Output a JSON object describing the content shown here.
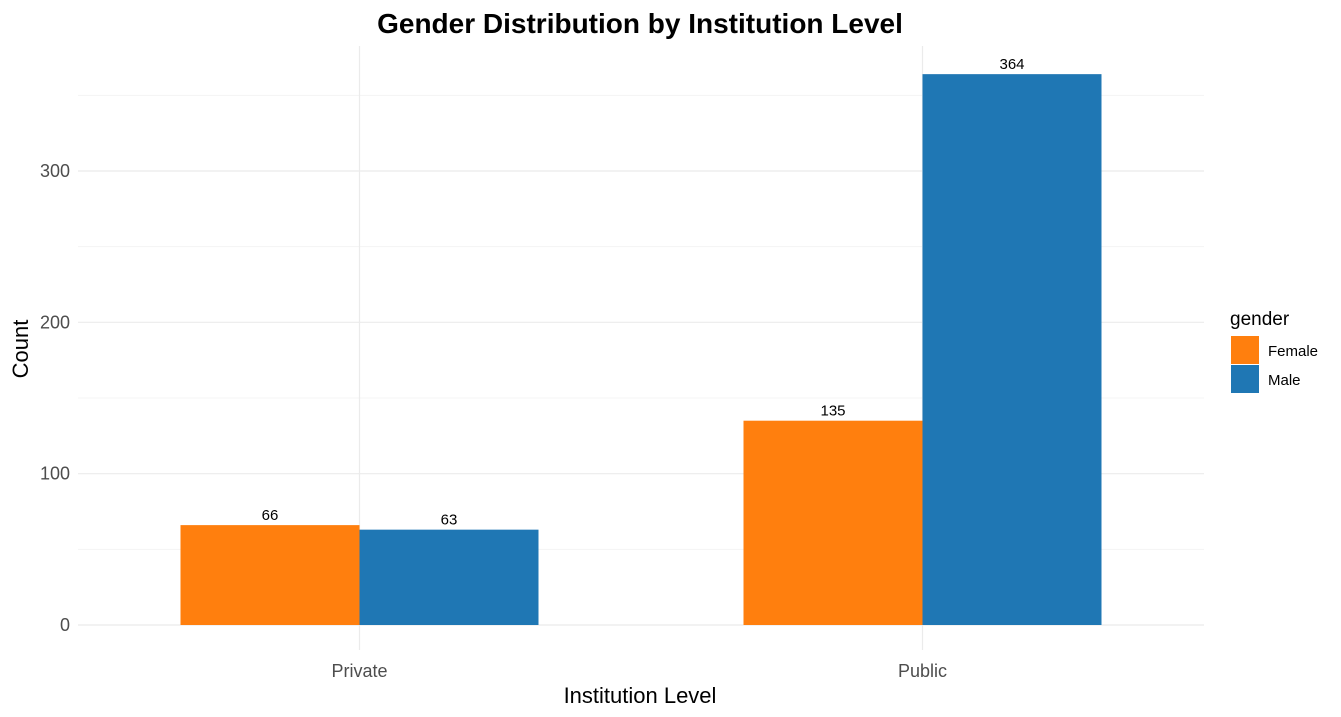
{
  "chart_data": {
    "type": "bar",
    "title": "Gender Distribution by Institution Level",
    "xlabel": "Institution Level",
    "ylabel": "Count",
    "categories": [
      "Private",
      "Public"
    ],
    "series": [
      {
        "name": "Female",
        "color": "#ff7f0e",
        "values": [
          66,
          135
        ]
      },
      {
        "name": "Male",
        "color": "#1f77b4",
        "values": [
          63,
          364
        ]
      }
    ],
    "ylim": [
      0,
      364
    ],
    "yticks": [
      0,
      100,
      200,
      300
    ],
    "ytick_labels": [
      "0",
      "100",
      "200",
      "300"
    ],
    "grid": true,
    "legend": {
      "title": "gender",
      "placement": "right"
    }
  }
}
